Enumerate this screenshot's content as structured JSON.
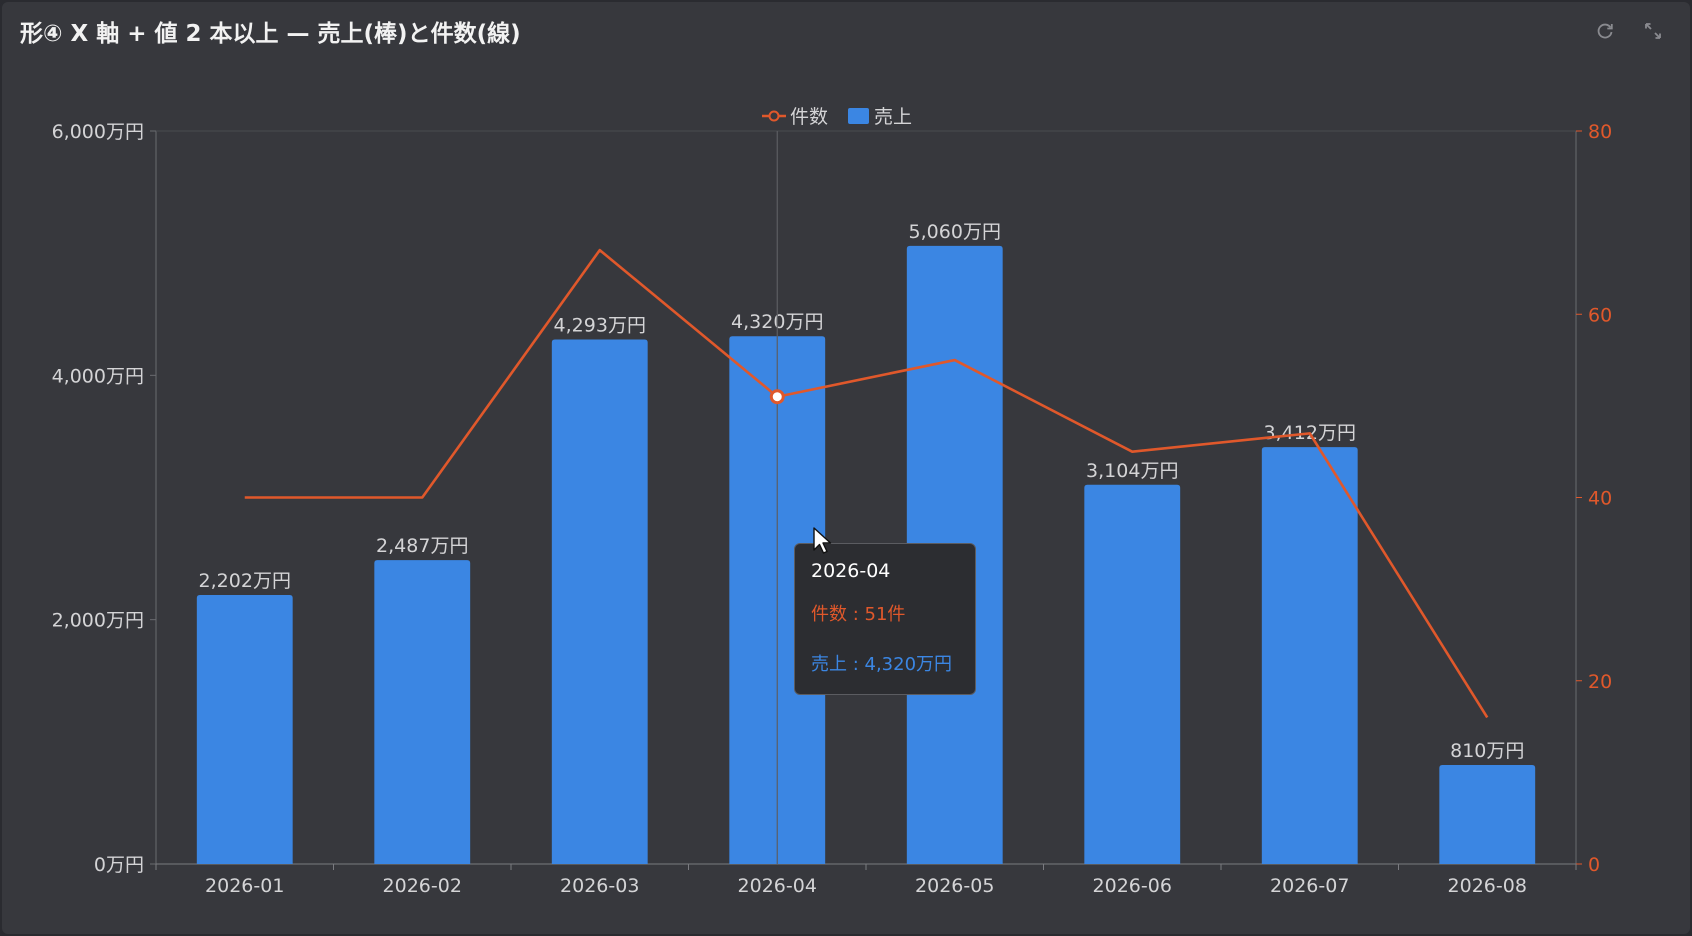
{
  "panel": {
    "title": "形④ X 軸 + 値 2 本以上 — 売上(棒)と件数(線)",
    "tools": [
      "refresh-icon",
      "expand-icon"
    ]
  },
  "chart_data": {
    "type": "bar",
    "categories": [
      "2026-01",
      "2026-02",
      "2026-03",
      "2026-04",
      "2026-05",
      "2026-06",
      "2026-07",
      "2026-08"
    ],
    "series": [
      {
        "name": "売上",
        "type": "bar",
        "axis": "left",
        "color": "#3b86e3",
        "values": [
          2202,
          2487,
          4293,
          4320,
          5060,
          3104,
          3412,
          810
        ],
        "labels": [
          "2,202万円",
          "2,487万円",
          "4,293万円",
          "4,320万円",
          "5,060万円",
          "3,104万円",
          "3,412万円",
          "810万円"
        ]
      },
      {
        "name": "件数",
        "type": "line",
        "axis": "right",
        "color": "#e0582b",
        "values": [
          40,
          40,
          67,
          51,
          55,
          45,
          47,
          16
        ]
      }
    ],
    "y_left": {
      "ylim": [
        0,
        6000
      ],
      "ticks": [
        0,
        2000,
        4000,
        6000
      ],
      "tick_labels": [
        "0万円",
        "2,000万円",
        "4,000万円",
        "6,000万円"
      ]
    },
    "y_right": {
      "ylim": [
        0,
        80
      ],
      "ticks": [
        0,
        20,
        40,
        60,
        80
      ],
      "tick_labels": [
        "0",
        "20",
        "40",
        "60",
        "80"
      ]
    },
    "legend": {
      "placement": "top-center",
      "items": [
        "件数",
        "売上"
      ]
    },
    "highlight_category": "2026-04",
    "tooltip": {
      "title": "2026-04",
      "line_text": "件数 : 51件",
      "bar_text": "売上 : 4,320万円"
    }
  }
}
